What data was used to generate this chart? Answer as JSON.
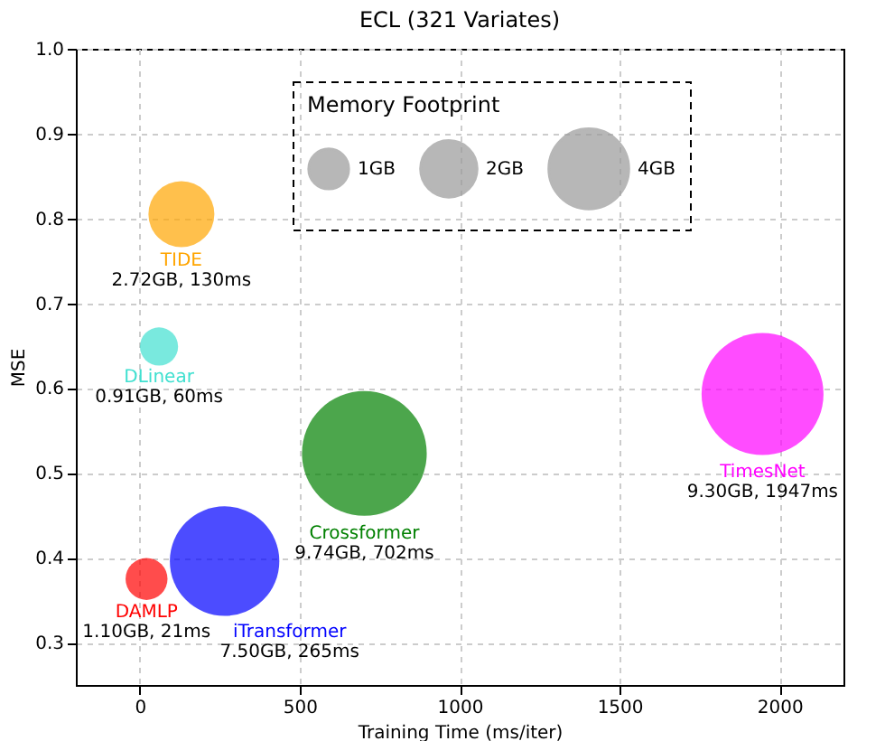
{
  "chart_data": {
    "type": "bubble",
    "title": "ECL (321 Variates)",
    "xlabel": "Training Time (ms/iter)",
    "ylabel": "MSE",
    "legend_title": "Memory Footprint",
    "xlim": [
      -200,
      2200
    ],
    "xticks": [
      0,
      500,
      1000,
      1500,
      2000
    ],
    "ylim": [
      0.25,
      1.0
    ],
    "yticks": [
      0.3,
      0.4,
      0.5,
      0.6,
      0.7,
      0.8,
      0.9,
      {
        "value": 1.0,
        "label": "1.0"
      }
    ],
    "grid": true,
    "size_legend": [
      {
        "value": 1,
        "label": "1GB"
      },
      {
        "value": 2,
        "label": "2GB"
      },
      {
        "value": 4,
        "label": "4GB"
      }
    ],
    "series": [
      {
        "name": "TIDE",
        "color": "#ffa500",
        "x": [
          130
        ],
        "values": [
          0.805
        ],
        "sizes": [
          2.72
        ],
        "value_labels": [
          "2.72GB, 130ms"
        ]
      },
      {
        "name": "DLinear",
        "color": "#40e0d0",
        "x": [
          60
        ],
        "values": [
          0.649
        ],
        "sizes": [
          0.91
        ],
        "value_labels": [
          "0.91GB, 60ms"
        ]
      },
      {
        "name": "DAMLP",
        "color": "#ff0000",
        "x": [
          21
        ],
        "values": [
          0.375
        ],
        "sizes": [
          1.1
        ],
        "value_labels": [
          "1.10GB, 21ms"
        ]
      },
      {
        "name": "iTransformer",
        "color": "#0000ff",
        "x": [
          265
        ],
        "values": [
          0.396
        ],
        "sizes": [
          7.5
        ],
        "value_labels": [
          "7.50GB, 265ms"
        ]
      },
      {
        "name": "Crossformer",
        "color": "#008000",
        "x": [
          702
        ],
        "values": [
          0.523
        ],
        "sizes": [
          9.74
        ],
        "value_labels": [
          "9.74GB, 702ms"
        ]
      },
      {
        "name": "TimesNet",
        "color": "#ff00ff",
        "x": [
          1947
        ],
        "values": [
          0.593
        ],
        "sizes": [
          9.3
        ],
        "value_labels": [
          "9.30GB, 1947ms"
        ]
      }
    ]
  }
}
